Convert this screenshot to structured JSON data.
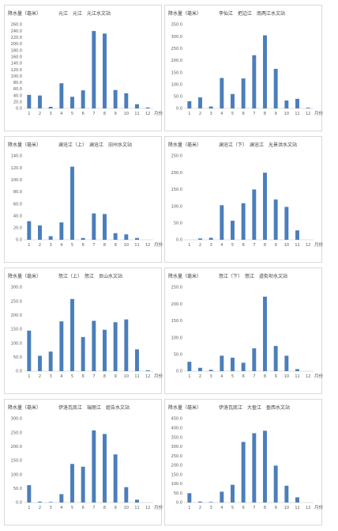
{
  "chart_data": [
    {
      "type": "bar",
      "title": "元江　元江　元江水文站",
      "ylabel": "降水量（毫米）",
      "xlabel": "月份",
      "categories": [
        "1",
        "2",
        "3",
        "4",
        "5",
        "6",
        "7",
        "8",
        "9",
        "10",
        "11",
        "12"
      ],
      "values": [
        42,
        40,
        5,
        78,
        36,
        56,
        240,
        232,
        57,
        47,
        13,
        3
      ],
      "ylim": [
        0,
        260
      ],
      "yticks": [
        "0.0",
        "20.0",
        "40.0",
        "60.0",
        "80.0",
        "100.0",
        "120.0",
        "140.0",
        "160.0",
        "180.0",
        "200.0",
        "220.0",
        "240.0",
        "260.0"
      ],
      "color": "#4a7ebb"
    },
    {
      "type": "bar",
      "title": "李仙江　把边江　南两江水文站",
      "ylabel": "降水量（毫米）",
      "xlabel": "月份",
      "categories": [
        "1",
        "2",
        "3",
        "4",
        "5",
        "6",
        "7",
        "8",
        "9",
        "10",
        "11",
        "12"
      ],
      "values": [
        30,
        46,
        8,
        127,
        60,
        125,
        222,
        305,
        165,
        33,
        40,
        3
      ],
      "ylim": [
        0,
        350
      ],
      "yticks": [
        "0.0",
        "50.0",
        "100.0",
        "150.0",
        "200.0",
        "250.0",
        "300.0",
        "350.0"
      ],
      "color": "#4a7ebb"
    },
    {
      "type": "bar",
      "title": "澜沧江（上）　澜沧江　旧州水文站",
      "ylabel": "降水量（毫米）",
      "xlabel": "月份",
      "categories": [
        "1",
        "2",
        "3",
        "4",
        "5",
        "6",
        "7",
        "8",
        "9",
        "10",
        "11",
        "12"
      ],
      "values": [
        31,
        24,
        6,
        29,
        122,
        3,
        44,
        43,
        11,
        9,
        3,
        0
      ],
      "ylim": [
        0,
        140
      ],
      "yticks": [
        "0.0",
        "20.0",
        "40.0",
        "60.0",
        "80.0",
        "100.0",
        "120.0",
        "140.0"
      ],
      "color": "#4a7ebb"
    },
    {
      "type": "bar",
      "title": "澜沧江（下）　澜沧江　允景洪水文站",
      "ylabel": "降水量（毫米）",
      "xlabel": "月份",
      "categories": [
        "1",
        "2",
        "3",
        "4",
        "5",
        "6",
        "7",
        "8",
        "9",
        "10",
        "11",
        "12"
      ],
      "values": [
        0,
        4,
        6,
        103,
        57,
        109,
        150,
        200,
        120,
        98,
        28,
        0
      ],
      "ylim": [
        0,
        250
      ],
      "yticks": [
        "0.0",
        "50.0",
        "100.0",
        "150.0",
        "200.0",
        "250.0"
      ],
      "color": "#4a7ebb"
    },
    {
      "type": "bar",
      "title": "怒江（上）　怒江　贡山水文站",
      "ylabel": "降水量（毫米）",
      "xlabel": "月份",
      "categories": [
        "1",
        "2",
        "3",
        "4",
        "5",
        "6",
        "7",
        "8",
        "9",
        "10",
        "11",
        "12"
      ],
      "values": [
        145,
        55,
        70,
        178,
        258,
        122,
        180,
        148,
        175,
        185,
        78,
        3
      ],
      "ylim": [
        0,
        300
      ],
      "yticks": [
        "0.0",
        "50.0",
        "100.0",
        "150.0",
        "200.0",
        "250.0",
        "300.0"
      ],
      "color": "#4a7ebb"
    },
    {
      "type": "bar",
      "title": "怒江（下）　怒江　道街坝水文站",
      "ylabel": "降水量（毫米）",
      "xlabel": "月份",
      "categories": [
        "1",
        "2",
        "3",
        "4",
        "5",
        "6",
        "7",
        "8",
        "9",
        "10",
        "11",
        "12"
      ],
      "values": [
        28,
        10,
        4,
        46,
        40,
        25,
        68,
        222,
        75,
        46,
        6,
        0
      ],
      "ylim": [
        0,
        250
      ],
      "yticks": [
        "0.0",
        "50.0",
        "100.0",
        "150.0",
        "200.0",
        "250.0"
      ],
      "color": "#4a7ebb"
    },
    {
      "type": "bar",
      "title": "伊洛瓦底江　瑞丽江　姐告水文站",
      "ylabel": "降水量（毫米）",
      "xlabel": "月份",
      "categories": [
        "1",
        "2",
        "3",
        "4",
        "5",
        "6",
        "7",
        "8",
        "9",
        "10",
        "11",
        "12"
      ],
      "values": [
        62,
        3,
        2,
        30,
        138,
        128,
        258,
        245,
        172,
        55,
        10,
        0
      ],
      "ylim": [
        0,
        300
      ],
      "yticks": [
        "0.0",
        "50.0",
        "100.0",
        "150.0",
        "200.0",
        "250.0",
        "300.0"
      ],
      "color": "#4a7ebb"
    },
    {
      "type": "bar",
      "title": "伊洛瓦底江　大盈江　盈西水文站",
      "ylabel": "降水量（毫米）",
      "xlabel": "月份",
      "categories": [
        "1",
        "2",
        "3",
        "4",
        "5",
        "6",
        "7",
        "8",
        "9",
        "10",
        "11",
        "12"
      ],
      "values": [
        50,
        5,
        3,
        58,
        95,
        325,
        372,
        385,
        198,
        90,
        28,
        0
      ],
      "ylim": [
        0,
        450
      ],
      "yticks": [
        "0.0",
        "50.0",
        "100.0",
        "150.0",
        "200.0",
        "250.0",
        "300.0",
        "350.0",
        "400.0",
        "450.0"
      ],
      "color": "#4a7ebb"
    }
  ]
}
